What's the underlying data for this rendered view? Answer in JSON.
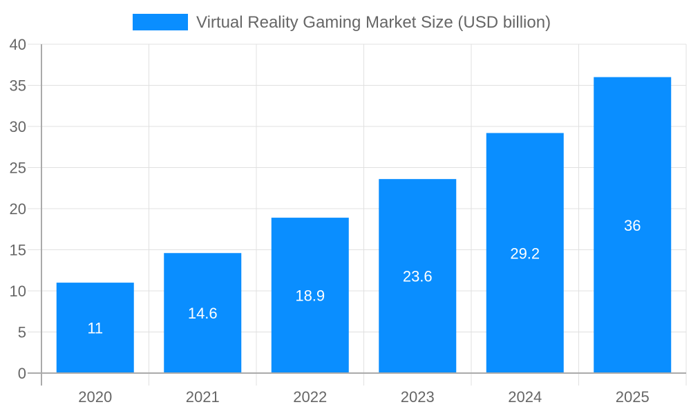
{
  "chart_data": {
    "type": "bar",
    "title": "",
    "xlabel": "",
    "ylabel": "",
    "categories": [
      "2020",
      "2021",
      "2022",
      "2023",
      "2024",
      "2025"
    ],
    "series": [
      {
        "name": "Virtual Reality Gaming Market Size (USD billion)",
        "values": [
          11,
          14.6,
          18.9,
          23.6,
          29.2,
          36
        ],
        "color": "#0a8eff"
      }
    ],
    "data_labels": [
      "11",
      "14.6",
      "18.9",
      "23.6",
      "29.2",
      "36"
    ],
    "ylim": [
      0,
      40
    ],
    "yticks": [
      "0",
      "5",
      "10",
      "15",
      "20",
      "25",
      "30",
      "35",
      "40"
    ],
    "grid": true,
    "legend": "top-center"
  }
}
